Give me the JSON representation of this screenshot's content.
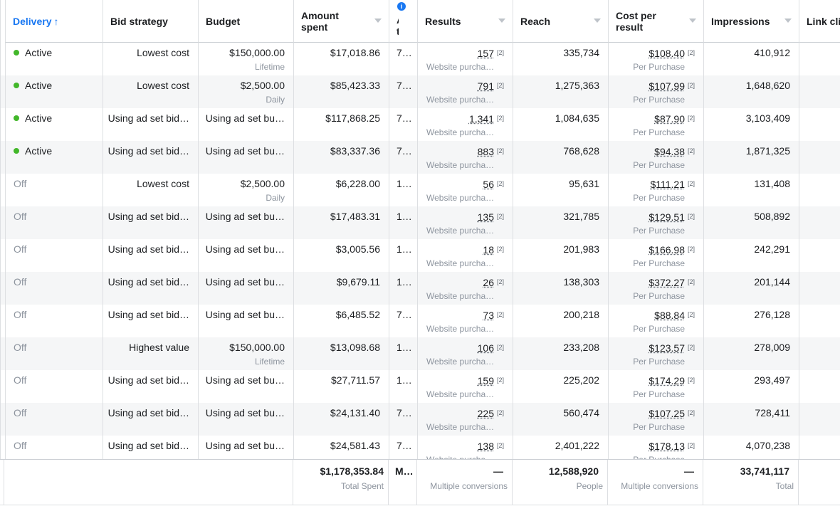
{
  "header": [
    "Delivery",
    "Bid strategy",
    "Budget",
    "Amount spent",
    "Attribution setting",
    "Results",
    "Reach",
    "Cost per result",
    "Impressions",
    "Link clicks"
  ],
  "rows": [
    {
      "delivery": "Active",
      "bid_strategy": "Lowest cost",
      "budget": "$150,000.00",
      "budget_period": "Lifetime",
      "amount_spent": "$17,018.86",
      "attribution": "7…",
      "results": "157",
      "results_note": "[2]",
      "results_type": "Website purcha…",
      "reach": "335,734",
      "cost_per_result": "$108.40",
      "cost_note": "[2]",
      "cost_type": "Per Purchase",
      "impressions": "410,912"
    },
    {
      "delivery": "Active",
      "bid_strategy": "Lowest cost",
      "budget": "$2,500.00",
      "budget_period": "Daily",
      "amount_spent": "$85,423.33",
      "attribution": "7…",
      "results": "791",
      "results_note": "[2]",
      "results_type": "Website purcha…",
      "reach": "1,275,363",
      "cost_per_result": "$107.99",
      "cost_note": "[2]",
      "cost_type": "Per Purchase",
      "impressions": "1,648,620"
    },
    {
      "delivery": "Active",
      "bid_strategy": "Using ad set bid…",
      "budget": "Using ad set bu…",
      "amount_spent": "$117,868.25",
      "attribution": "7…",
      "results": "1,341",
      "results_note": "[2]",
      "results_type": "Website purcha…",
      "reach": "1,084,635",
      "cost_per_result": "$87.90",
      "cost_note": "[2]",
      "cost_type": "Per Purchase",
      "impressions": "3,103,409"
    },
    {
      "delivery": "Active",
      "bid_strategy": "Using ad set bid…",
      "budget": "Using ad set bu…",
      "amount_spent": "$83,337.36",
      "attribution": "7…",
      "results": "883",
      "results_note": "[2]",
      "results_type": "Website purcha…",
      "reach": "768,628",
      "cost_per_result": "$94.38",
      "cost_note": "[2]",
      "cost_type": "Per Purchase",
      "impressions": "1,871,325"
    },
    {
      "delivery": "Off",
      "bid_strategy": "Lowest cost",
      "budget": "$2,500.00",
      "budget_period": "Daily",
      "amount_spent": "$6,228.00",
      "attribution": "1…",
      "results": "56",
      "results_note": "[2]",
      "results_type": "Website purcha…",
      "reach": "95,631",
      "cost_per_result": "$111.21",
      "cost_note": "[2]",
      "cost_type": "Per Purchase",
      "impressions": "131,408"
    },
    {
      "delivery": "Off",
      "bid_strategy": "Using ad set bid…",
      "budget": "Using ad set bu…",
      "amount_spent": "$17,483.31",
      "attribution": "1…",
      "results": "135",
      "results_note": "[2]",
      "results_type": "Website purcha…",
      "reach": "321,785",
      "cost_per_result": "$129.51",
      "cost_note": "[2]",
      "cost_type": "Per Purchase",
      "impressions": "508,892"
    },
    {
      "delivery": "Off",
      "bid_strategy": "Using ad set bid…",
      "budget": "Using ad set bu…",
      "amount_spent": "$3,005.56",
      "attribution": "1…",
      "results": "18",
      "results_note": "[2]",
      "results_type": "Website purcha…",
      "reach": "201,983",
      "cost_per_result": "$166.98",
      "cost_note": "[2]",
      "cost_type": "Per Purchase",
      "impressions": "242,291"
    },
    {
      "delivery": "Off",
      "bid_strategy": "Using ad set bid…",
      "budget": "Using ad set bu…",
      "amount_spent": "$9,679.11",
      "attribution": "1…",
      "results": "26",
      "results_note": "[2]",
      "results_type": "Website purcha…",
      "reach": "138,303",
      "cost_per_result": "$372.27",
      "cost_note": "[2]",
      "cost_type": "Per Purchase",
      "impressions": "201,144"
    },
    {
      "delivery": "Off",
      "bid_strategy": "Using ad set bid…",
      "budget": "Using ad set bu…",
      "amount_spent": "$6,485.52",
      "attribution": "7…",
      "results": "73",
      "results_note": "[2]",
      "results_type": "Website purcha…",
      "reach": "200,218",
      "cost_per_result": "$88.84",
      "cost_note": "[2]",
      "cost_type": "Per Purchase",
      "impressions": "276,128"
    },
    {
      "delivery": "Off",
      "bid_strategy": "Highest value",
      "budget": "$150,000.00",
      "budget_period": "Lifetime",
      "amount_spent": "$13,098.68",
      "attribution": "1…",
      "results": "106",
      "results_note": "[2]",
      "results_type": "Website purcha…",
      "reach": "233,208",
      "cost_per_result": "$123.57",
      "cost_note": "[2]",
      "cost_type": "Per Purchase",
      "impressions": "278,009"
    },
    {
      "delivery": "Off",
      "bid_strategy": "Using ad set bid…",
      "budget": "Using ad set bu…",
      "amount_spent": "$27,711.57",
      "attribution": "1…",
      "results": "159",
      "results_note": "[2]",
      "results_type": "Website purcha…",
      "reach": "225,202",
      "cost_per_result": "$174.29",
      "cost_note": "[2]",
      "cost_type": "Per Purchase",
      "impressions": "293,497"
    },
    {
      "delivery": "Off",
      "bid_strategy": "Using ad set bid…",
      "budget": "Using ad set bu…",
      "amount_spent": "$24,131.40",
      "attribution": "7…",
      "results": "225",
      "results_note": "[2]",
      "results_type": "Website purcha…",
      "reach": "560,474",
      "cost_per_result": "$107.25",
      "cost_note": "[2]",
      "cost_type": "Per Purchase",
      "impressions": "728,411"
    },
    {
      "delivery": "Off",
      "bid_strategy": "Using ad set bid…",
      "budget": "Using ad set bu…",
      "amount_spent": "$24,581.43",
      "attribution": "7…",
      "results": "138",
      "results_note": "[2]",
      "results_type": "Website purcha…",
      "reach": "2,401,222",
      "cost_per_result": "$178.13",
      "cost_note": "[2]",
      "cost_type": "Per Purchase",
      "impressions": "4,070,238"
    }
  ],
  "footer": {
    "amount_spent": "$1,178,353.84",
    "amount_spent_label": "Total Spent",
    "attribution": "M…",
    "results": "—",
    "results_label": "Multiple conversions",
    "reach": "12,588,920",
    "reach_label": "People",
    "cost_per_result": "—",
    "cost_per_result_label": "Multiple conversions",
    "impressions": "33,741,117",
    "impressions_label": "Total"
  }
}
